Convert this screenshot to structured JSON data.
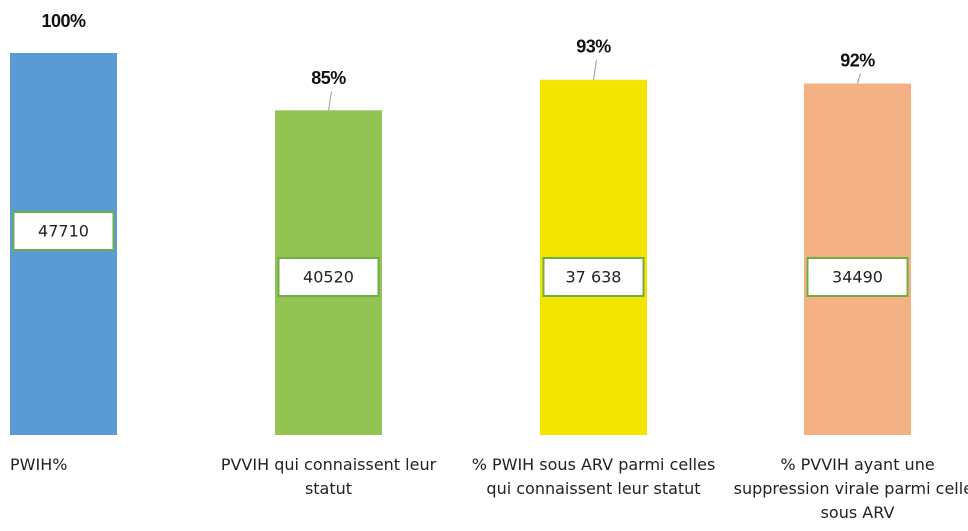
{
  "chart_data": {
    "type": "bar",
    "categories": [
      "PWIH%",
      "PVVIH qui connaissent leur statut",
      "% PWIH sous ARV parmi celles qui connaissent leur statut",
      "% PVVIH ayant une suppression virale parmi celles sous ARV"
    ],
    "values": [
      100,
      85,
      93,
      92
    ],
    "value_labels": [
      "100%",
      "85%",
      "93%",
      "92%"
    ],
    "counts": [
      47710,
      40520,
      37638,
      34490
    ],
    "count_labels": [
      "47710",
      "40520",
      "37 638",
      "34490"
    ],
    "colors": [
      "#5b9bd5",
      "#92c353",
      "#f2e500",
      "#f4b183"
    ],
    "ylim": [
      0,
      100
    ]
  }
}
